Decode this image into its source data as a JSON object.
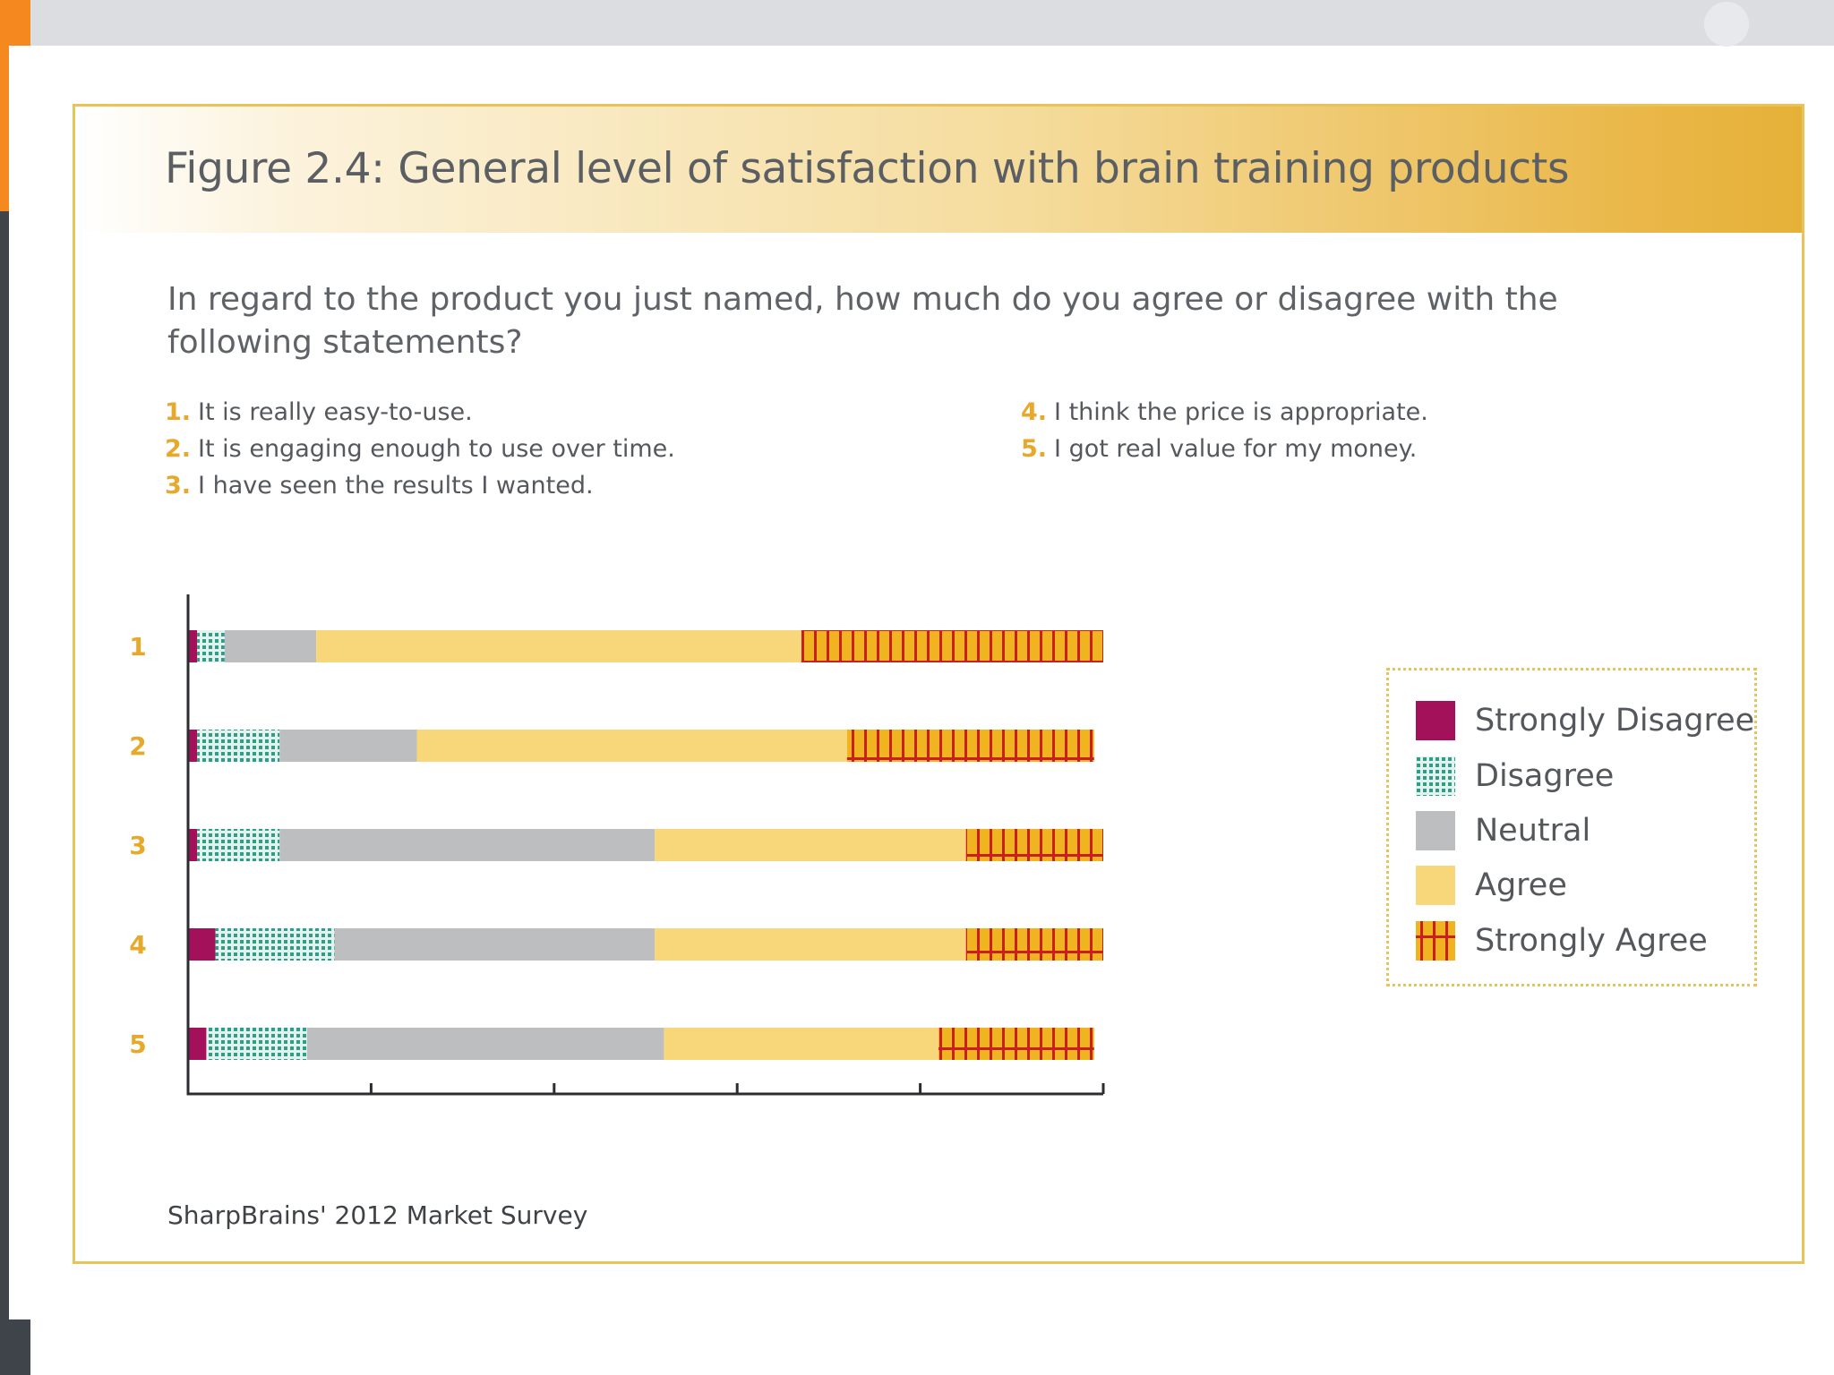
{
  "page": {
    "title": "Figure 2.4: General level of satisfaction with brain training products",
    "question": "In regard to the product you just named, how much do you agree or disagree with the following statements?",
    "statements": [
      {
        "num": "1.",
        "text": "It is really easy-to-use."
      },
      {
        "num": "2.",
        "text": "It is engaging enough to use over time."
      },
      {
        "num": "3.",
        "text": "I have seen the results I wanted."
      },
      {
        "num": "4.",
        "text": "I think the price is appropriate."
      },
      {
        "num": "5.",
        "text": "I got real value for my money."
      }
    ],
    "source": "SharpBrains' 2012 Market Survey"
  },
  "colors": {
    "strongly_disagree": "#a3115a",
    "disagree": "#2d9e8c",
    "neutral": "#bdbec0",
    "agree": "#f8d77a",
    "strongly_agree": "#f0b420",
    "accent": "#e6a92c"
  },
  "chart_data": {
    "type": "bar",
    "orientation": "horizontal",
    "stacked": true,
    "title": "Figure 2.4: General level of satisfaction with brain training products",
    "xlabel": "",
    "ylabel": "",
    "xlim": [
      0,
      100
    ],
    "x_ticks": [
      0,
      20,
      40,
      60,
      80,
      100
    ],
    "x_tick_labels_shown": false,
    "categories": [
      "1",
      "2",
      "3",
      "4",
      "5"
    ],
    "series": [
      {
        "name": "Strongly Disagree",
        "key": "strongly_disagree",
        "values": [
          1,
          1,
          1,
          3,
          2
        ]
      },
      {
        "name": "Disagree",
        "key": "disagree",
        "values": [
          3,
          9,
          9,
          13,
          11
        ]
      },
      {
        "name": "Neutral",
        "key": "neutral",
        "values": [
          10,
          15,
          41,
          35,
          39
        ]
      },
      {
        "name": "Agree",
        "key": "agree",
        "values": [
          53,
          47,
          34,
          34,
          30
        ]
      },
      {
        "name": "Strongly Agree",
        "key": "strongly_agree",
        "values": [
          33,
          27,
          15,
          15,
          17
        ]
      }
    ],
    "legend_position": "right"
  }
}
